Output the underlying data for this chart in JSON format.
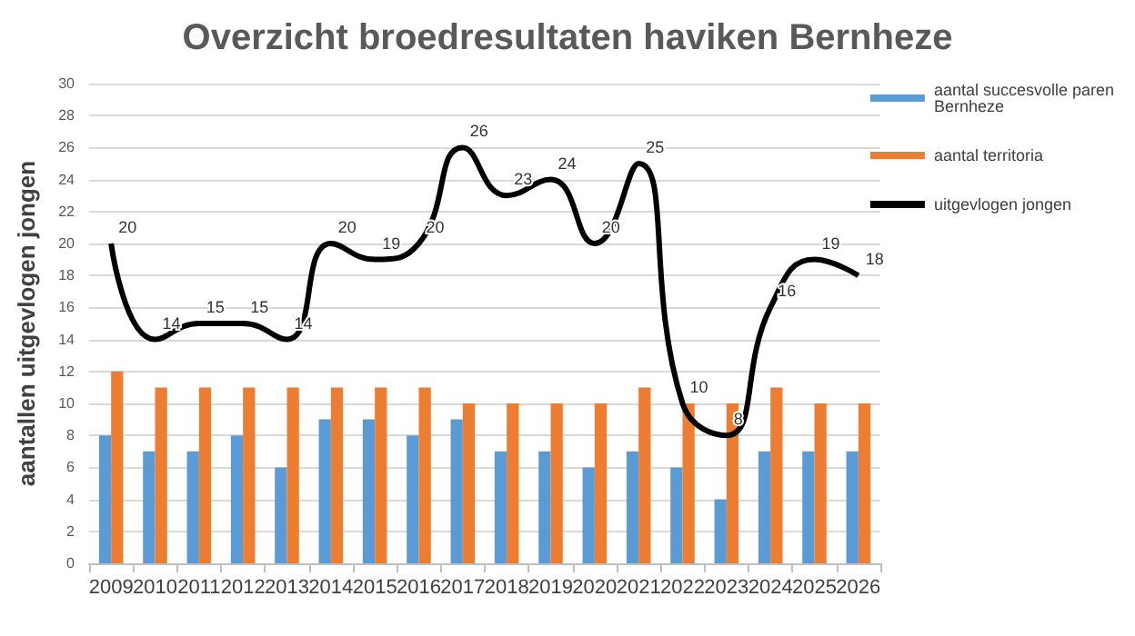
{
  "chart_data": {
    "type": "bar",
    "title": "Overzicht broedresultaten haviken Bernheze",
    "ylabel": "aantallen uitgevlogen jongen",
    "categories": [
      "2009",
      "2010",
      "2011",
      "2012",
      "2013",
      "2014",
      "2015",
      "2016",
      "2017",
      "2018",
      "2019",
      "2020",
      "2021",
      "2022",
      "2023",
      "2024",
      "2025",
      "2026"
    ],
    "series": [
      {
        "name": "aantal succesvolle paren Bernheze",
        "color": "#5b9bd5",
        "values": [
          8,
          7,
          7,
          8,
          6,
          9,
          9,
          8,
          9,
          7,
          7,
          6,
          7,
          6,
          4,
          7,
          7,
          7
        ]
      },
      {
        "name": "aantal territoria",
        "color": "#ed7d31",
        "values": [
          12,
          11,
          11,
          11,
          11,
          11,
          11,
          11,
          10,
          10,
          10,
          10,
          11,
          10,
          10,
          11,
          10,
          10
        ]
      },
      {
        "name": "uitgevlogen jongen",
        "type": "line",
        "color": "#000000",
        "values": [
          20,
          14,
          15,
          15,
          14,
          20,
          19,
          20,
          26,
          23,
          24,
          20,
          25,
          10,
          8,
          16,
          19,
          18
        ],
        "value_labels": [
          "20",
          "14",
          "15",
          "15",
          "14",
          "20",
          "19",
          "20",
          "26",
          "23",
          "24",
          "20",
          "25",
          "10",
          "8",
          "16",
          "19",
          "18"
        ]
      }
    ],
    "ylim": [
      0,
      30
    ],
    "yticks": [
      0,
      2,
      4,
      6,
      8,
      10,
      12,
      14,
      16,
      18,
      20,
      22,
      24,
      26,
      28,
      30
    ],
    "grid": "y",
    "legend": "right",
    "marker": "none"
  }
}
